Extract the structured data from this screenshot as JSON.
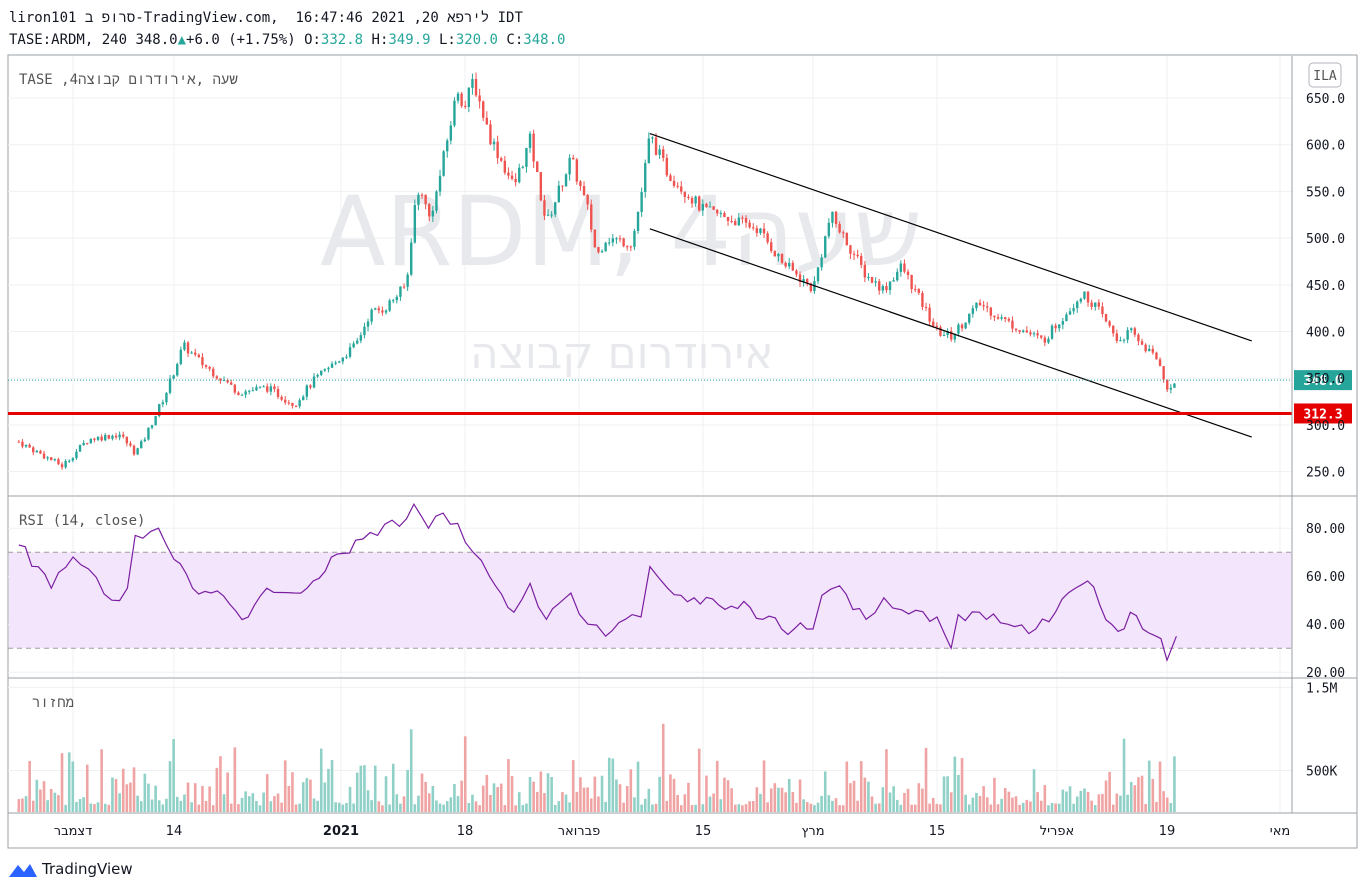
{
  "header": {
    "line1": "liron101 סרופ ב-TradingView.com,  לירפא 20, 2021 16:47:46 IDT",
    "symbol": "TASE:ARDM, 240",
    "last": "348.0",
    "change": "+6.0 (+1.75%)",
    "o_label": "O:",
    "o": "332.8",
    "h_label": "H:",
    "h": "349.9",
    "l_label": "L:",
    "l": "320.0",
    "c_label": "C:",
    "c": "348.0"
  },
  "watermark": {
    "symbol": "ARDM, 4שעה",
    "name": "אירודרום קבוצה"
  },
  "price_pane": {
    "legend": "TASE ,4שעה ,אירודרום קבוצה",
    "currency_badge": "ILA"
  },
  "rsi_pane": {
    "legend": "RSI (14, close)"
  },
  "volume_pane": {
    "legend": "מחזור"
  },
  "brand": {
    "name": "TradingView"
  },
  "colors": {
    "up": "#26a69a",
    "down": "#ef5350",
    "vol_up": "#8fd0c7",
    "vol_down": "#f0a3a3",
    "rsi": "#7b1fa2",
    "rsi_band": "#f3e5fb",
    "support": "#e50000"
  },
  "chart_data": [
    {
      "type": "candlestick",
      "title": "TASE:ARDM, 240",
      "ylim": [
        225,
        695
      ],
      "y_ticks": [
        "250.0",
        "300.0",
        "350.0",
        "400.0",
        "450.0",
        "500.0",
        "550.0",
        "600.0",
        "650.0"
      ],
      "x_tick_labels": [
        "דצמבר",
        "14",
        "2021",
        "18",
        "פברואר",
        "15",
        "מרץ",
        "15",
        "אפריל",
        "19",
        "מאי"
      ],
      "last_price_label": "348.0",
      "horizontal_line": {
        "label": "312.3",
        "value": 312.3
      },
      "trend_channel": [
        {
          "from": {
            "time": "2021-02-09",
            "price": 612
          },
          "to": {
            "time": "2021-04-28",
            "price": 390
          }
        },
        {
          "from": {
            "time": "2021-02-09",
            "price": 510
          },
          "to": {
            "time": "2021-04-28",
            "price": 287
          }
        }
      ],
      "close_series": [
        {
          "date": "2020-11-26",
          "close": 282
        },
        {
          "date": "2020-11-30",
          "close": 256
        },
        {
          "date": "2020-12-03",
          "close": 285
        },
        {
          "date": "2020-12-07",
          "close": 290
        },
        {
          "date": "2020-12-09",
          "close": 270
        },
        {
          "date": "2020-12-10",
          "close": 282
        },
        {
          "date": "2020-12-13",
          "close": 335
        },
        {
          "date": "2020-12-15",
          "close": 385
        },
        {
          "date": "2020-12-17",
          "close": 366
        },
        {
          "date": "2020-12-21",
          "close": 335
        },
        {
          "date": "2020-12-24",
          "close": 340
        },
        {
          "date": "2020-12-27",
          "close": 322
        },
        {
          "date": "2020-12-29",
          "close": 347
        },
        {
          "date": "2021-01-03",
          "close": 385
        },
        {
          "date": "2021-01-05",
          "close": 420
        },
        {
          "date": "2021-01-07",
          "close": 425
        },
        {
          "date": "2021-01-10",
          "close": 450
        },
        {
          "date": "2021-01-11",
          "close": 530
        },
        {
          "date": "2021-01-12",
          "close": 555
        },
        {
          "date": "2021-01-13",
          "close": 520
        },
        {
          "date": "2021-01-14",
          "close": 545
        },
        {
          "date": "2021-01-17",
          "close": 660
        },
        {
          "date": "2021-01-18",
          "close": 640
        },
        {
          "date": "2021-01-19",
          "close": 670
        },
        {
          "date": "2021-01-21",
          "close": 610
        },
        {
          "date": "2021-01-24",
          "close": 555
        },
        {
          "date": "2021-01-26",
          "close": 605
        },
        {
          "date": "2021-01-28",
          "close": 515
        },
        {
          "date": "2021-01-31",
          "close": 585
        },
        {
          "date": "2021-02-02",
          "close": 530
        },
        {
          "date": "2021-02-03",
          "close": 480
        },
        {
          "date": "2021-02-04",
          "close": 500
        },
        {
          "date": "2021-02-07",
          "close": 495
        },
        {
          "date": "2021-02-08",
          "close": 545
        },
        {
          "date": "2021-02-09",
          "close": 610
        },
        {
          "date": "2021-02-11",
          "close": 570
        },
        {
          "date": "2021-02-15",
          "close": 530
        },
        {
          "date": "2021-02-17",
          "close": 525
        },
        {
          "date": "2021-02-22",
          "close": 510
        },
        {
          "date": "2021-02-25",
          "close": 475
        },
        {
          "date": "2021-03-01",
          "close": 445
        },
        {
          "date": "2021-03-03",
          "close": 525
        },
        {
          "date": "2021-03-07",
          "close": 460
        },
        {
          "date": "2021-03-09",
          "close": 445
        },
        {
          "date": "2021-03-11",
          "close": 470
        },
        {
          "date": "2021-03-15",
          "close": 400
        },
        {
          "date": "2021-03-17",
          "close": 395
        },
        {
          "date": "2021-03-21",
          "close": 430
        },
        {
          "date": "2021-03-25",
          "close": 410
        },
        {
          "date": "2021-03-30",
          "close": 390
        },
        {
          "date": "2021-04-05",
          "close": 440
        },
        {
          "date": "2021-04-07",
          "close": 430
        },
        {
          "date": "2021-04-11",
          "close": 390
        },
        {
          "date": "2021-04-13",
          "close": 400
        },
        {
          "date": "2021-04-18",
          "close": 365
        },
        {
          "date": "2021-04-19",
          "close": 335
        },
        {
          "date": "2021-04-20",
          "close": 348
        }
      ]
    },
    {
      "type": "line",
      "title": "RSI (14, close)",
      "ylim": [
        18,
        93
      ],
      "y_ticks": [
        "20.00",
        "40.00",
        "60.00",
        "80.00"
      ],
      "band": [
        30,
        70
      ],
      "series": [
        {
          "values": [
            {
              "date": "2020-11-26",
              "value": 73
            },
            {
              "date": "2020-11-29",
              "value": 55
            },
            {
              "date": "2020-12-01",
              "value": 68
            },
            {
              "date": "2020-12-03",
              "value": 63
            },
            {
              "date": "2020-12-06",
              "value": 50
            },
            {
              "date": "2020-12-08",
              "value": 55
            },
            {
              "date": "2020-12-09",
              "value": 77
            },
            {
              "date": "2020-12-12",
              "value": 80
            },
            {
              "date": "2020-12-14",
              "value": 67
            },
            {
              "date": "2020-12-16",
              "value": 55
            },
            {
              "date": "2020-12-18",
              "value": 53
            },
            {
              "date": "2020-12-22",
              "value": 43
            },
            {
              "date": "2020-12-24",
              "value": 55
            },
            {
              "date": "2020-12-27",
              "value": 53
            },
            {
              "date": "2020-12-29",
              "value": 58
            },
            {
              "date": "2021-01-03",
              "value": 75
            },
            {
              "date": "2021-01-06",
              "value": 77
            },
            {
              "date": "2021-01-10",
              "value": 84
            },
            {
              "date": "2021-01-11",
              "value": 90
            },
            {
              "date": "2021-01-13",
              "value": 80
            },
            {
              "date": "2021-01-14",
              "value": 85
            },
            {
              "date": "2021-01-17",
              "value": 82
            },
            {
              "date": "2021-01-19",
              "value": 70
            },
            {
              "date": "2021-01-21",
              "value": 60
            },
            {
              "date": "2021-01-24",
              "value": 45
            },
            {
              "date": "2021-01-26",
              "value": 57
            },
            {
              "date": "2021-01-28",
              "value": 42
            },
            {
              "date": "2021-01-31",
              "value": 53
            },
            {
              "date": "2021-02-02",
              "value": 40
            },
            {
              "date": "2021-02-04",
              "value": 35
            },
            {
              "date": "2021-02-07",
              "value": 44
            },
            {
              "date": "2021-02-08",
              "value": 43
            },
            {
              "date": "2021-02-09",
              "value": 64
            },
            {
              "date": "2021-02-11",
              "value": 55
            },
            {
              "date": "2021-02-14",
              "value": 51
            },
            {
              "date": "2021-02-17",
              "value": 48
            },
            {
              "date": "2021-02-21",
              "value": 47
            },
            {
              "date": "2021-02-25",
              "value": 38
            },
            {
              "date": "2021-03-01",
              "value": 38
            },
            {
              "date": "2021-03-02",
              "value": 52
            },
            {
              "date": "2021-03-04",
              "value": 56
            },
            {
              "date": "2021-03-07",
              "value": 42
            },
            {
              "date": "2021-03-09",
              "value": 51
            },
            {
              "date": "2021-03-11",
              "value": 46
            },
            {
              "date": "2021-03-15",
              "value": 43
            },
            {
              "date": "2021-03-17",
              "value": 30
            },
            {
              "date": "2021-03-18",
              "value": 44
            },
            {
              "date": "2021-03-21",
              "value": 45
            },
            {
              "date": "2021-03-25",
              "value": 40
            },
            {
              "date": "2021-03-29",
              "value": 38
            },
            {
              "date": "2021-04-04",
              "value": 55
            },
            {
              "date": "2021-04-06",
              "value": 58
            },
            {
              "date": "2021-04-08",
              "value": 48
            },
            {
              "date": "2021-04-11",
              "value": 37
            },
            {
              "date": "2021-04-13",
              "value": 45
            },
            {
              "date": "2021-04-15",
              "value": 38
            },
            {
              "date": "2021-04-18",
              "value": 34
            },
            {
              "date": "2021-04-19",
              "value": 25
            },
            {
              "date": "2021-04-20",
              "value": 35
            }
          ]
        }
      ]
    },
    {
      "type": "bar",
      "title": "מחזור",
      "ylim": [
        0,
        1600000
      ],
      "y_ticks": [
        "500K",
        "1.5M"
      ]
    }
  ]
}
